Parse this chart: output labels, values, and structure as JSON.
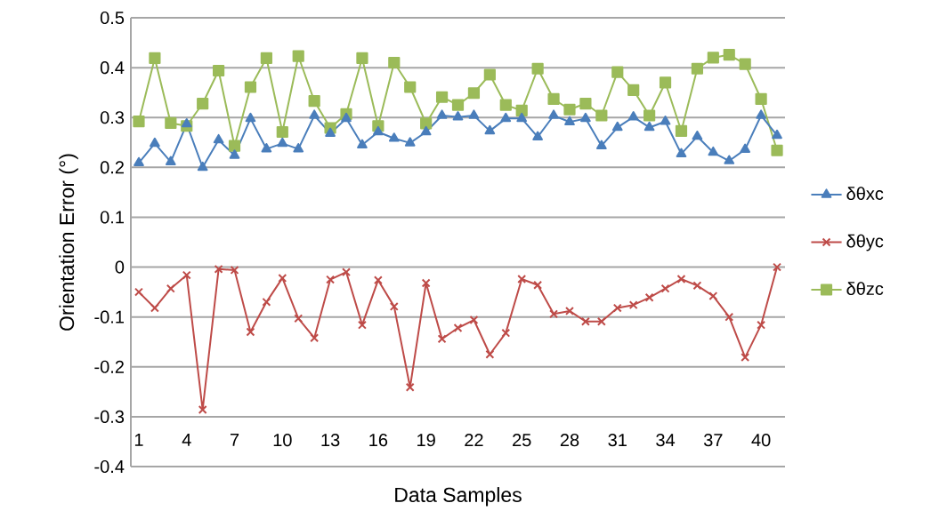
{
  "chart_data": {
    "type": "line",
    "xlabel": "Data Samples",
    "ylabel": "Orientation Error (°)",
    "categories": [
      "1",
      null,
      null,
      "4",
      null,
      null,
      "7",
      null,
      null,
      "10",
      null,
      null,
      "13",
      null,
      null,
      "16",
      null,
      null,
      "19",
      null,
      null,
      "22",
      null,
      null,
      "25",
      null,
      null,
      "28",
      null,
      null,
      "31",
      null,
      null,
      "34",
      null,
      null,
      "37",
      null,
      null,
      "40",
      null
    ],
    "ylim": [
      -0.4,
      0.5
    ],
    "yticks": [
      -0.4,
      -0.3,
      -0.2,
      -0.1,
      0,
      0.1,
      0.2,
      0.3,
      0.4,
      0.5
    ],
    "grid": "y",
    "legend": "right",
    "series": [
      {
        "name": "δθxc",
        "color": "#4a7ebb",
        "marker": "triangle",
        "values": [
          0.209,
          0.248,
          0.211,
          0.287,
          0.2,
          0.255,
          0.224,
          0.298,
          0.237,
          0.248,
          0.237,
          0.304,
          0.268,
          0.298,
          0.245,
          0.271,
          0.258,
          0.249,
          0.271,
          0.304,
          0.301,
          0.304,
          0.273,
          0.298,
          0.298,
          0.261,
          0.304,
          0.291,
          0.298,
          0.243,
          0.28,
          0.301,
          0.28,
          0.292,
          0.227,
          0.262,
          0.23,
          0.213,
          0.236,
          0.304,
          0.264
        ]
      },
      {
        "name": "δθyc",
        "color": "#be4b48",
        "marker": "cross",
        "values": [
          -0.05,
          -0.082,
          -0.043,
          -0.016,
          -0.286,
          -0.004,
          -0.006,
          -0.13,
          -0.07,
          -0.022,
          -0.103,
          -0.142,
          -0.025,
          -0.01,
          -0.116,
          -0.026,
          -0.079,
          -0.241,
          -0.032,
          -0.144,
          -0.122,
          -0.106,
          -0.175,
          -0.132,
          -0.024,
          -0.036,
          -0.094,
          -0.088,
          -0.109,
          -0.109,
          -0.082,
          -0.076,
          -0.061,
          -0.043,
          -0.024,
          -0.037,
          -0.058,
          -0.1,
          -0.181,
          -0.116,
          0.0
        ]
      },
      {
        "name": "δθzc",
        "color": "#9bbb59",
        "marker": "square",
        "values": [
          0.292,
          0.419,
          0.289,
          0.283,
          0.328,
          0.394,
          0.243,
          0.361,
          0.419,
          0.271,
          0.423,
          0.333,
          0.279,
          0.307,
          0.419,
          0.283,
          0.41,
          0.361,
          0.288,
          0.341,
          0.325,
          0.349,
          0.386,
          0.325,
          0.314,
          0.398,
          0.337,
          0.316,
          0.328,
          0.304,
          0.391,
          0.355,
          0.304,
          0.37,
          0.273,
          0.398,
          0.42,
          0.426,
          0.407,
          0.337,
          0.234
        ]
      }
    ]
  }
}
